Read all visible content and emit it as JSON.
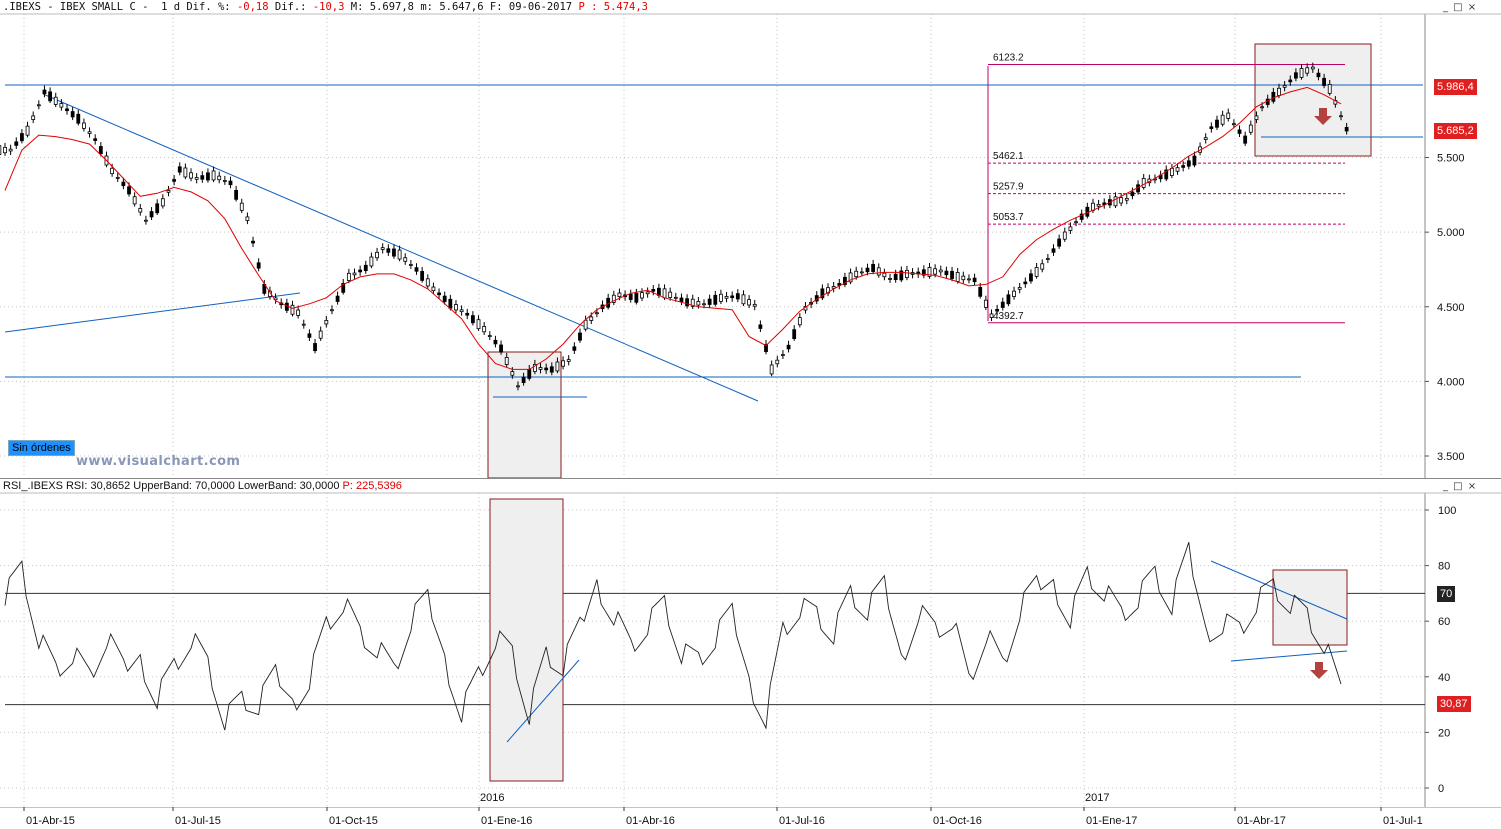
{
  "header": {
    "symbol": ".IBEXS",
    "dash1": " - ",
    "name": "IBEX SMALL C",
    "dash2": " - ",
    "timeframe": "1 d",
    "dif_pct_label": "Dif. %:",
    "dif_pct": "-0,18",
    "dif_label": "Dif.:",
    "dif": "-10,3",
    "max_label": "M:",
    "max": "5.697,8",
    "min_label": "m:",
    "min": "5.647,6",
    "date_label": "F:",
    "date": "09-06-2017",
    "p_label": "P :",
    "p": "5.474,3"
  },
  "rsi_header": {
    "name": "RSI_.IBEXS",
    "rsi_label": "RSI:",
    "rsi": "30,8652",
    "upper_label": "UpperBand:",
    "upper": "70,0000",
    "lower_label": "LowerBand:",
    "lower": "30,0000",
    "p_label": "P:",
    "p": "225,5396"
  },
  "window_controls": {
    "top": "_ □ ×",
    "bottom": "_ □ ×"
  },
  "sin_ordenes": "Sin órdenes",
  "watermark": "www.visualchart.com",
  "price_tags": {
    "ma": "5.986,4",
    "last": "5.685,2"
  },
  "rsi_tags": {
    "upper": "70",
    "last": "30,87"
  },
  "fib_labels": [
    "6123.2",
    "5462.1",
    "5257.9",
    "5053.7",
    "4392.7"
  ],
  "year_labels": [
    "2016",
    "2017"
  ],
  "colors": {
    "price": "#000000",
    "ma": "#e00000",
    "trend": "#1060c0",
    "fib": "#c0006a",
    "box": "#8b1a1a",
    "arrow": "#b54040",
    "tag_red": "#e02020",
    "tag_dark": "#222222"
  },
  "chart_data": [
    {
      "type": "candlestick",
      "title": "",
      "ylim": [
        3300,
        6300
      ],
      "y_ticks": [
        "3.500",
        "4.000",
        "4.500",
        "5.000",
        "5.500"
      ],
      "x_ticks": [
        "01-Abr-15",
        "01-Jul-15",
        "01-Oct-15",
        "01-Ene-16",
        "01-Abr-16",
        "01-Jul-16",
        "01-Oct-16",
        "01-Ene-17",
        "01-Abr-17",
        "01-Jul-1"
      ],
      "series": [
        {
          "values": [
            5550,
            5680,
            5940,
            5850,
            5760,
            5620,
            5410,
            5280,
            5080,
            5200,
            5420,
            5360,
            5380,
            5330,
            5090,
            4620,
            4520,
            4460,
            4230,
            4480,
            4700,
            4760,
            4890,
            4850,
            4750,
            4620,
            4520,
            4450,
            4350,
            4220,
            3970,
            4090,
            4080,
            4140,
            4380,
            4500,
            4580,
            4560,
            4610,
            4580,
            4530,
            4520,
            4560,
            4570,
            4510,
            4080,
            4230,
            4490,
            4590,
            4650,
            4720,
            4760,
            4690,
            4720,
            4730,
            4740,
            4700,
            4680,
            4440,
            4550,
            4660,
            4770,
            4930,
            5070,
            5170,
            5200,
            5220,
            5330,
            5370,
            5420,
            5480,
            5700,
            5780,
            5620,
            5840,
            5940,
            6050,
            6100,
            5960,
            5690
          ]
        },
        {
          "name": "",
          "values": [
            5280,
            5550,
            5650,
            5640,
            5620,
            5590,
            5480,
            5360,
            5240,
            5260,
            5300,
            5270,
            5210,
            5090,
            4890,
            4710,
            4540,
            4490,
            4520,
            4560,
            4650,
            4700,
            4720,
            4720,
            4680,
            4620,
            4520,
            4420,
            4250,
            4120,
            4080,
            4080,
            4150,
            4250,
            4380,
            4480,
            4540,
            4590,
            4610,
            4560,
            4530,
            4500,
            4490,
            4480,
            4300,
            4240,
            4350,
            4470,
            4550,
            4620,
            4680,
            4720,
            4730,
            4730,
            4720,
            4710,
            4680,
            4640,
            4650,
            4700,
            4850,
            4950,
            5020,
            5080,
            5130,
            5180,
            5240,
            5300,
            5360,
            5430,
            5510,
            5570,
            5640,
            5730,
            5840,
            5900,
            5940,
            5970,
            5920,
            5860
          ]
        }
      ],
      "annotations": [
        {
          "label": "6123.2",
          "value": 6123.2
        },
        {
          "label": "5462.1",
          "value": 5462.1
        },
        {
          "label": "5257.9",
          "value": 5257.9
        },
        {
          "label": "5053.7",
          "value": 5053.7
        },
        {
          "label": "4392.7",
          "value": 4392.7
        }
      ],
      "tags": [
        "5.986,4",
        "5.685,2"
      ]
    },
    {
      "type": "line",
      "title": "",
      "ylim": [
        -5,
        107
      ],
      "y_ticks": [
        "0",
        "20",
        "40",
        "60",
        "80",
        "100"
      ],
      "bands": [
        70,
        30
      ],
      "series": [
        {
          "name": "RSI",
          "values": [
            72,
            80,
            55,
            42,
            48,
            38,
            52,
            40,
            48,
            35,
            45,
            55,
            44,
            24,
            30,
            28,
            38,
            32,
            42,
            60,
            68,
            55,
            50,
            40,
            58,
            65,
            48,
            30,
            42,
            55,
            48,
            26,
            46,
            42,
            55,
            75,
            65,
            52,
            60,
            66,
            48,
            44,
            52,
            60,
            40,
            28,
            58,
            66,
            62,
            55,
            68,
            62,
            70,
            48,
            66,
            58,
            62,
            38,
            55,
            42,
            62,
            70,
            75,
            64,
            78,
            72,
            62,
            68,
            75,
            64,
            82,
            58,
            62,
            58,
            68,
            72,
            66,
            60,
            50,
            31
          ]
        }
      ],
      "tags": [
        "70",
        "30,87"
      ]
    }
  ]
}
